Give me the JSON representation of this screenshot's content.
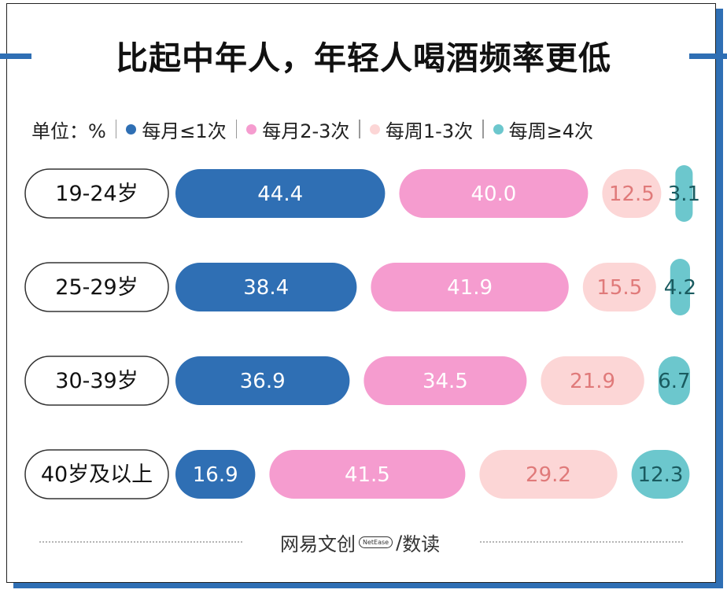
{
  "title": "比起中年人，年轻人喝酒频率更低",
  "legend": {
    "unit_label": "单位：%",
    "items": [
      {
        "label": "每月≤1次",
        "color": "#2f6fb4"
      },
      {
        "label": "每月2-3次",
        "color": "#f59ccf"
      },
      {
        "label": "每周1-3次",
        "color": "#fcd6d6"
      },
      {
        "label": "每周≥4次",
        "color": "#6cc7cd"
      }
    ]
  },
  "footer": {
    "brand_cn": "网易文创",
    "brand_en": "NetEase",
    "slash": "/",
    "sub": "数读"
  },
  "chart_data": {
    "type": "bar",
    "stacked": true,
    "orientation": "horizontal",
    "categories": [
      "19-24岁",
      "25-29岁",
      "30-39岁",
      "40岁及以上"
    ],
    "series": [
      {
        "name": "每月≤1次",
        "values": [
          44.4,
          38.4,
          36.9,
          16.9
        ],
        "color": "#2f6fb4",
        "label_color": "#ffffff"
      },
      {
        "name": "每月2-3次",
        "values": [
          40.0,
          41.9,
          34.5,
          41.5
        ],
        "color": "#f59ccf",
        "label_color": "#ffffff"
      },
      {
        "name": "每周1-3次",
        "values": [
          12.5,
          15.5,
          21.9,
          29.2
        ],
        "color": "#fcd6d6",
        "label_color": "#e07a7a"
      },
      {
        "name": "每周≥4次",
        "values": [
          3.1,
          4.2,
          6.7,
          12.3
        ],
        "color": "#6cc7cd",
        "label_color": "#1a5b60"
      }
    ],
    "value_labels": [
      [
        "44.4",
        "40.0",
        "12.5",
        "3.1"
      ],
      [
        "38.4",
        "41.9",
        "15.5",
        "4.2"
      ],
      [
        "36.9",
        "34.5",
        "21.9",
        "6.7"
      ],
      [
        "16.9",
        "41.5",
        "29.2",
        "12.3"
      ]
    ]
  }
}
